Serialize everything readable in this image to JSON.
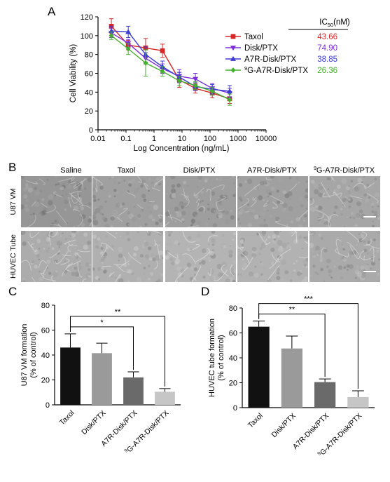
{
  "panel_letters": {
    "a": "A",
    "b": "B",
    "c": "C",
    "d": "D"
  },
  "colors": {
    "taxol": "#d62728",
    "disk_ptx": "#7b2fd9",
    "a7r_disk_ptx": "#3b3bd6",
    "9g_a7r_disk_ptx": "#44b12e",
    "bar_black": "#111111",
    "bar_grey1": "#9a9a9a",
    "bar_grey2": "#6a6a6a",
    "bar_grey3": "#c6c6c6"
  },
  "panel_a": {
    "ic50_header": "IC50(nM)",
    "legend": [
      {
        "name": "Taxol",
        "ic50": "43.66",
        "color": "#d62728",
        "marker": "square"
      },
      {
        "name": "Disk/PTX",
        "ic50": "74.90",
        "color": "#7b2fd9",
        "marker": "triangle-down"
      },
      {
        "name": "A7R-Disk/PTX",
        "ic50": "38.85",
        "color": "#3b3bd6",
        "marker": "triangle-up"
      },
      {
        "name": "9G-A7R-Disk/PTX",
        "ic50": "26.36",
        "color": "#44b12e",
        "marker": "diamond"
      }
    ]
  },
  "panel_b": {
    "columns": [
      "Saline",
      "Taxol",
      "Disk/PTX",
      "A7R-Disk/PTX",
      "9G-A7R-Disk/PTX"
    ],
    "rows": [
      "U87 VM",
      "HUVEC Tube"
    ]
  },
  "chart_data": [
    {
      "type": "line",
      "panel": "A",
      "xlabel": "Log Concentration (ng/mL)",
      "ylabel": "Cell Viability (%)",
      "x_scale": "log",
      "xlim": [
        0.01,
        10000
      ],
      "ylim": [
        0,
        120
      ],
      "x_ticks": [
        "0.01",
        "0.1",
        "1",
        "10",
        "100",
        "1000",
        "10000"
      ],
      "y_ticks": [
        0,
        20,
        40,
        60,
        80,
        100,
        120
      ],
      "x": [
        0.03,
        0.12,
        0.5,
        2,
        8,
        30,
        120,
        500
      ],
      "series": [
        {
          "name": "Taxol",
          "values": [
            110,
            90,
            87,
            84,
            53,
            44,
            39,
            33
          ],
          "errors": [
            8,
            5,
            10,
            7,
            8,
            5,
            5,
            5
          ]
        },
        {
          "name": "Disk/PTX",
          "values": [
            103,
            92,
            76,
            65,
            57,
            54,
            44,
            39
          ],
          "errors": [
            5,
            4,
            6,
            5,
            7,
            6,
            5,
            5
          ]
        },
        {
          "name": "A7R-Disk/PTX",
          "values": [
            105,
            104,
            80,
            67,
            56,
            46,
            43,
            41
          ],
          "errors": [
            5,
            6,
            8,
            6,
            5,
            4,
            5,
            6
          ]
        },
        {
          "name": "9G-A7R-Disk/PTX",
          "values": [
            100,
            86,
            71,
            62,
            52,
            47,
            41,
            32
          ],
          "errors": [
            4,
            6,
            14,
            5,
            5,
            4,
            4,
            6
          ]
        }
      ]
    },
    {
      "type": "bar",
      "panel": "C",
      "ylabel": "U87 VM formation (% of control)",
      "ylim": [
        0,
        80
      ],
      "y_ticks": [
        0,
        20,
        40,
        60,
        80
      ],
      "categories": [
        "Taxol",
        "Disk/PTX",
        "A7R-Disk/PTX",
        "9G-A7R-Disk/PTX"
      ],
      "values": [
        46,
        41.5,
        22,
        10.5
      ],
      "errors": [
        11,
        8,
        4.5,
        2.5
      ],
      "significance": [
        {
          "from": "Taxol",
          "to": "A7R-Disk/PTX",
          "label": "*"
        },
        {
          "from": "Taxol",
          "to": "9G-A7R-Disk/PTX",
          "label": "**"
        }
      ]
    },
    {
      "type": "bar",
      "panel": "D",
      "ylabel": "HUVEC tube formation (% of control)",
      "ylim": [
        0,
        80
      ],
      "y_ticks": [
        0,
        20,
        40,
        60,
        80
      ],
      "categories": [
        "Taxol",
        "Disk/PTX",
        "A7R-Disk/PTX",
        "9G-A7R-Disk/PTX"
      ],
      "values": [
        65,
        47.5,
        20.5,
        8.5
      ],
      "errors": [
        4.5,
        10,
        2.5,
        5
      ],
      "significance": [
        {
          "from": "Taxol",
          "to": "A7R-Disk/PTX",
          "label": "**"
        },
        {
          "from": "Taxol",
          "to": "9G-A7R-Disk/PTX",
          "label": "***"
        }
      ]
    }
  ]
}
